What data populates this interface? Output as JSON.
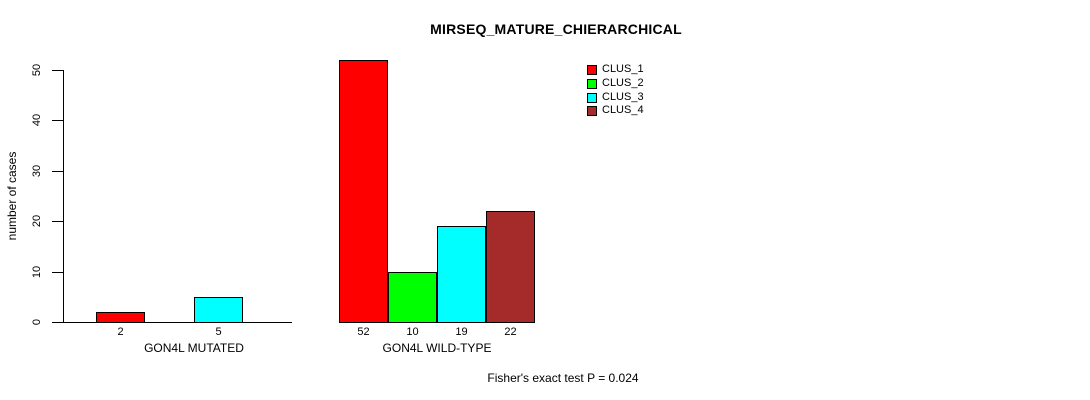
{
  "chart_data": {
    "type": "bar",
    "title": "MIRSEQ_MATURE_CHIERARCHICAL",
    "ylabel": "number of cases",
    "xlabel": "",
    "ylim": [
      0,
      50
    ],
    "yticks": [
      0,
      10,
      20,
      30,
      40,
      50
    ],
    "grid": false,
    "legend_position": "top-right-inside",
    "bar_value_labels_shown": true,
    "categories": [
      "GON4L MUTATED",
      "GON4L WILD-TYPE"
    ],
    "series": [
      {
        "name": "CLUS_1",
        "color": "#FF0000",
        "values": [
          2,
          52
        ]
      },
      {
        "name": "CLUS_2",
        "color": "#00FF00",
        "values": [
          0,
          10
        ]
      },
      {
        "name": "CLUS_3",
        "color": "#00FFFF",
        "values": [
          5,
          19
        ]
      },
      {
        "name": "CLUS_4",
        "color": "#A52A2A",
        "values": [
          0,
          22
        ]
      }
    ],
    "footnote": "Fisher's exact test P = 0.024"
  }
}
